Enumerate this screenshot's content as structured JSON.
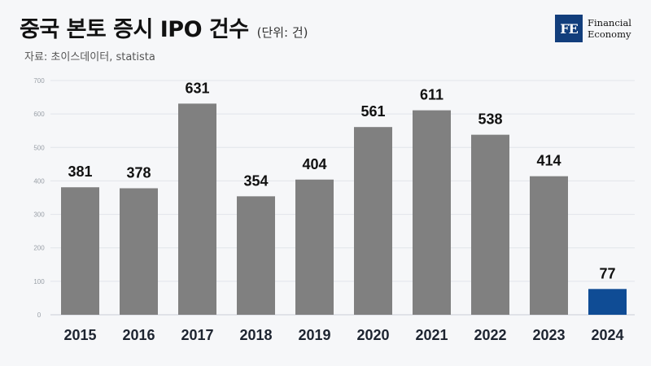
{
  "header": {
    "title": "중국 본토 증시 IPO 건수",
    "unit": "(단위: 건)",
    "source": "자료: 초이스데이터, statista"
  },
  "logo": {
    "mark": "FE",
    "line1": "Financial",
    "line2": "Economy",
    "color": "#123e7c"
  },
  "chart_data": {
    "type": "bar",
    "title": "중국 본토 증시 IPO 건수",
    "categories": [
      "2015",
      "2016",
      "2017",
      "2018",
      "2019",
      "2020",
      "2021",
      "2022",
      "2023",
      "2024"
    ],
    "values": [
      381,
      378,
      631,
      354,
      404,
      561,
      611,
      538,
      414,
      77
    ],
    "ylim": [
      0,
      700
    ],
    "yticks": [
      0,
      100,
      200,
      300,
      400,
      500,
      600,
      700
    ],
    "grid": true,
    "bar_color": "#808080",
    "highlight_color": "#0f4c95",
    "highlight_index": 9
  }
}
